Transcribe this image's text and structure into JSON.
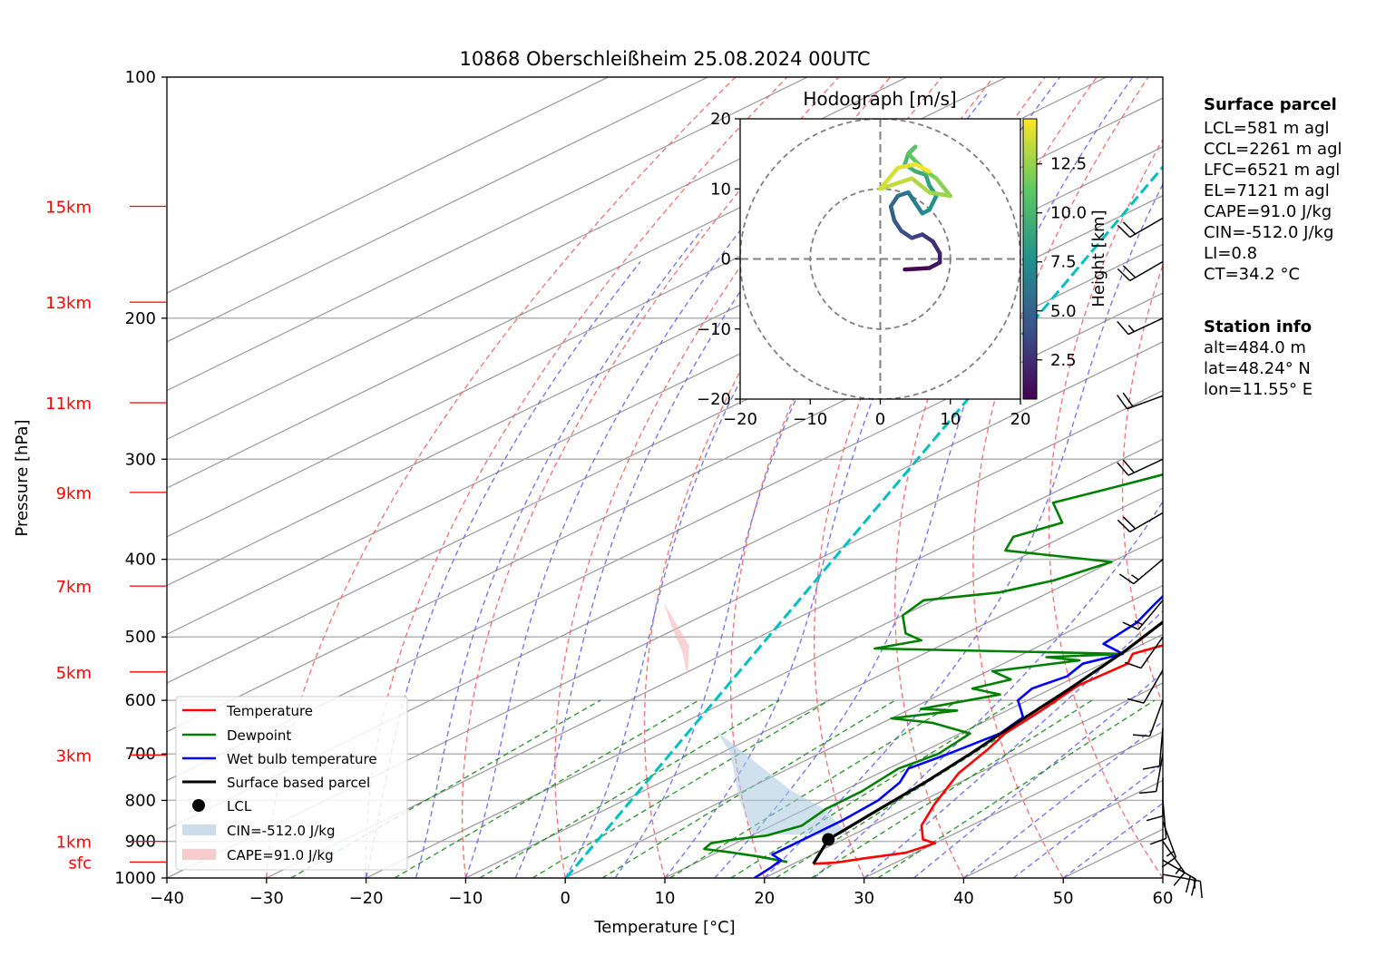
{
  "chart_data": {
    "type": "skew-t",
    "title": "10868 Oberschleißheim 25.08.2024 00UTC",
    "xlabel": "Temperature [°C]",
    "ylabel": "Pressure [hPa]",
    "xlim": [
      -40,
      60
    ],
    "ylim": [
      1000,
      100
    ],
    "x_ticks": [
      -40,
      -30,
      -20,
      -10,
      0,
      10,
      20,
      30,
      40,
      50,
      60
    ],
    "x_tick_labels": [
      "−40",
      "−30",
      "−20",
      "−10",
      "0",
      "10",
      "20",
      "30",
      "40",
      "50",
      "60"
    ],
    "y_ticks": [
      1000,
      900,
      800,
      700,
      600,
      500,
      400,
      300,
      200,
      100
    ],
    "y_tick_labels": [
      "1000",
      "900",
      "800",
      "700",
      "600",
      "500",
      "400",
      "300",
      "200",
      "100"
    ],
    "height_markers": [
      {
        "label": "sfc",
        "p": 955
      },
      {
        "label": "1km",
        "p": 900
      },
      {
        "label": "3km",
        "p": 702
      },
      {
        "label": "5km",
        "p": 553
      },
      {
        "label": "7km",
        "p": 432
      },
      {
        "label": "9km",
        "p": 330
      },
      {
        "label": "11km",
        "p": 255
      },
      {
        "label": "13km",
        "p": 191
      },
      {
        "label": "15km",
        "p": 145
      }
    ],
    "series": [
      {
        "name": "Temperature",
        "color": "#ff0000",
        "points": [
          [
            22,
            960
          ],
          [
            24,
            957
          ],
          [
            26,
            945
          ],
          [
            29,
            930
          ],
          [
            30,
            905
          ],
          [
            28,
            895
          ],
          [
            25,
            860
          ],
          [
            22,
            810
          ],
          [
            18,
            740
          ],
          [
            16,
            690
          ],
          [
            14.5,
            660
          ],
          [
            13.5,
            620
          ],
          [
            12,
            575
          ],
          [
            12.5,
            540
          ],
          [
            11,
            525
          ],
          [
            12.5,
            510
          ],
          [
            10,
            475
          ],
          [
            7,
            440
          ],
          [
            5.5,
            400
          ],
          [
            6,
            380
          ],
          [
            3,
            345
          ],
          [
            1,
            320
          ],
          [
            -2,
            300
          ],
          [
            -4,
            280
          ],
          [
            -6,
            262
          ],
          [
            -8,
            245
          ],
          [
            -9,
            230
          ],
          [
            -11,
            215
          ],
          [
            -14,
            200
          ],
          [
            -10.5,
            168
          ],
          [
            -8,
            160
          ],
          [
            -3,
            150
          ],
          [
            -2,
            143
          ],
          [
            0,
            130
          ],
          [
            0.5,
            125
          ],
          [
            0.3,
            120
          ],
          [
            1,
            115
          ],
          [
            1.5,
            114
          ]
        ]
      },
      {
        "name": "Dewpoint",
        "color": "#008000",
        "points": [
          [
            19,
            955
          ],
          [
            15,
            940
          ],
          [
            11,
            928
          ],
          [
            8,
            920
          ],
          [
            7.5,
            905
          ],
          [
            9,
            895
          ],
          [
            11.5,
            885
          ],
          [
            13,
            860
          ],
          [
            12,
            820
          ],
          [
            12,
            780
          ],
          [
            11,
            730
          ],
          [
            12,
            700
          ],
          [
            11,
            660
          ],
          [
            5,
            640
          ],
          [
            0,
            632
          ],
          [
            5,
            618
          ],
          [
            1,
            615
          ],
          [
            6,
            590
          ],
          [
            2,
            580
          ],
          [
            4,
            565
          ],
          [
            0.5,
            552
          ],
          [
            7,
            535
          ],
          [
            3,
            530
          ],
          [
            10,
            525
          ],
          [
            -16,
            517
          ],
          [
            -13,
            505
          ],
          [
            -16,
            495
          ],
          [
            -20,
            470
          ],
          [
            -21,
            450
          ],
          [
            -15,
            440
          ],
          [
            -12,
            425
          ],
          [
            -10,
            403
          ],
          [
            -23,
            390
          ],
          [
            -25,
            375
          ],
          [
            -23,
            360
          ],
          [
            -28,
            340
          ],
          [
            -25,
            325
          ],
          [
            -20,
            300
          ],
          [
            -21,
            280
          ],
          [
            -23,
            258
          ],
          [
            -24,
            235
          ],
          [
            -22,
            215
          ],
          [
            -19,
            200
          ],
          [
            -25,
            193
          ],
          [
            -27,
            180
          ],
          [
            -26,
            168
          ],
          [
            -28,
            155
          ],
          [
            -27,
            145
          ],
          [
            -25,
            140
          ],
          [
            -24.5,
            138
          ]
        ]
      },
      {
        "name": "Wet bulb temperature",
        "color": "#0000ff",
        "points": [
          [
            19,
            1000
          ],
          [
            18.5,
            970
          ],
          [
            18,
            950
          ],
          [
            16,
            935
          ],
          [
            16,
            905
          ],
          [
            16,
            880
          ],
          [
            16,
            845
          ],
          [
            15.5,
            800
          ],
          [
            14,
            760
          ],
          [
            12,
            730
          ],
          [
            13,
            700
          ],
          [
            14,
            660
          ],
          [
            13,
            630
          ],
          [
            9,
            600
          ],
          [
            8,
            580
          ],
          [
            9,
            560
          ],
          [
            8,
            540
          ],
          [
            10,
            525
          ],
          [
            6,
            510
          ],
          [
            5,
            480
          ],
          [
            3,
            455
          ],
          [
            1,
            430
          ],
          [
            0,
            400
          ],
          [
            -2,
            380
          ],
          [
            -4,
            355
          ],
          [
            -6,
            335
          ],
          [
            -7,
            310
          ],
          [
            -9,
            290
          ],
          [
            -12,
            265
          ],
          [
            -14,
            250
          ],
          [
            -17,
            225
          ],
          [
            -19,
            210
          ],
          [
            -19,
            200
          ],
          [
            -17,
            185
          ],
          [
            -14,
            170
          ],
          [
            -10,
            160
          ],
          [
            -5,
            150
          ],
          [
            -3,
            143
          ],
          [
            0,
            130
          ],
          [
            0,
            125
          ],
          [
            0.4,
            120
          ],
          [
            1,
            115
          ],
          [
            1.5,
            114
          ]
        ]
      },
      {
        "name": "Surface based parcel",
        "color": "#000000",
        "points": [
          [
            22,
            960
          ],
          [
            18.5,
            895
          ],
          [
            17.4,
            820
          ],
          [
            16.5,
            760
          ],
          [
            15.2,
            700
          ],
          [
            13.5,
            640
          ],
          [
            11.8,
            580
          ],
          [
            9.6,
            520
          ],
          [
            7,
            470
          ],
          [
            3.5,
            420
          ],
          [
            0,
            385
          ],
          [
            -3.5,
            355
          ],
          [
            -8,
            320
          ],
          [
            -12,
            290
          ],
          [
            -17,
            260
          ],
          [
            -21,
            238
          ],
          [
            -26,
            215
          ],
          [
            -31,
            195
          ],
          [
            -37,
            175
          ],
          [
            -43,
            158
          ],
          [
            -48.5,
            145
          ],
          [
            -51,
            140
          ]
        ]
      }
    ],
    "lcl": {
      "name": "LCL",
      "t": 18.5,
      "p": 895
    },
    "cin_label": "CIN=-512.0 J/kg",
    "cape_label": "CAPE=91.0 J/kg",
    "wind_barbs": [
      {
        "p": 990,
        "dir": 100,
        "speed": 15
      },
      {
        "p": 950,
        "dir": 120,
        "speed": 20
      },
      {
        "p": 900,
        "dir": 145,
        "speed": 15
      },
      {
        "p": 850,
        "dir": 160,
        "speed": 15
      },
      {
        "p": 800,
        "dir": 175,
        "speed": 10
      },
      {
        "p": 750,
        "dir": 180,
        "speed": 10
      },
      {
        "p": 700,
        "dir": 190,
        "speed": 10
      },
      {
        "p": 650,
        "dir": 185,
        "speed": 10
      },
      {
        "p": 600,
        "dir": 200,
        "speed": 10
      },
      {
        "p": 550,
        "dir": 210,
        "speed": 10
      },
      {
        "p": 500,
        "dir": 215,
        "speed": 10
      },
      {
        "p": 450,
        "dir": 220,
        "speed": 15
      },
      {
        "p": 400,
        "dir": 230,
        "speed": 15
      },
      {
        "p": 350,
        "dir": 240,
        "speed": 20
      },
      {
        "p": 300,
        "dir": 245,
        "speed": 20
      },
      {
        "p": 250,
        "dir": 250,
        "speed": 20
      },
      {
        "p": 200,
        "dir": 245,
        "speed": 15
      },
      {
        "p": 170,
        "dir": 240,
        "speed": 20
      },
      {
        "p": 150,
        "dir": 240,
        "speed": 20
      }
    ],
    "legend": {
      "placement": "lower-left",
      "entries": [
        "Temperature",
        "Dewpoint",
        "Wet bulb temperature",
        "Surface based parcel",
        "LCL",
        "CIN=-512.0 J/kg",
        "CAPE=91.0 J/kg"
      ]
    },
    "hodograph": {
      "title": "Hodograph [m/s]",
      "xlim": [
        -20,
        20
      ],
      "ylim": [
        -20,
        20
      ],
      "ticks": [
        -20,
        -10,
        0,
        10,
        20
      ],
      "tick_labels": [
        "−20",
        "−10",
        "0",
        "10",
        "20"
      ],
      "rings": [
        10,
        20
      ],
      "colorbar_label": "Height [km]",
      "colorbar_ticks": [
        2.5,
        5.0,
        7.5,
        10.0,
        12.5
      ],
      "colorbar_tick_labels": [
        "2.5",
        "5.0",
        "7.5",
        "10.0",
        "12.5"
      ],
      "colorbar_range": [
        0.5,
        14.8
      ],
      "points": [
        {
          "u": 3.5,
          "v": -1.5,
          "h": 0.5
        },
        {
          "u": 7,
          "v": -1.3,
          "h": 0.9
        },
        {
          "u": 8.5,
          "v": -0.5,
          "h": 1.5
        },
        {
          "u": 8.5,
          "v": 0.8,
          "h": 2.0
        },
        {
          "u": 7.5,
          "v": 2.5,
          "h": 2.5
        },
        {
          "u": 6,
          "v": 3.5,
          "h": 3.0
        },
        {
          "u": 4.5,
          "v": 3.0,
          "h": 3.5
        },
        {
          "u": 3.0,
          "v": 4.0,
          "h": 4.0
        },
        {
          "u": 2.0,
          "v": 5.5,
          "h": 4.5
        },
        {
          "u": 1.5,
          "v": 7.5,
          "h": 5.0
        },
        {
          "u": 2.5,
          "v": 9.0,
          "h": 5.5
        },
        {
          "u": 4.0,
          "v": 9.5,
          "h": 6.0
        },
        {
          "u": 5.0,
          "v": 8.0,
          "h": 6.5
        },
        {
          "u": 6.0,
          "v": 6.5,
          "h": 7.0
        },
        {
          "u": 7.0,
          "v": 7.0,
          "h": 7.5
        },
        {
          "u": 8.0,
          "v": 9.0,
          "h": 8.0
        },
        {
          "u": 7.0,
          "v": 10.5,
          "h": 8.5
        },
        {
          "u": 6.5,
          "v": 12.0,
          "h": 9.0
        },
        {
          "u": 5.0,
          "v": 12.5,
          "h": 9.5
        },
        {
          "u": 3.5,
          "v": 13.5,
          "h": 10.0
        },
        {
          "u": 4.0,
          "v": 15.0,
          "h": 10.3
        },
        {
          "u": 5.0,
          "v": 16.0,
          "h": 10.6
        },
        {
          "u": 4.0,
          "v": 15.0,
          "h": 11.0
        },
        {
          "u": 5.0,
          "v": 14.0,
          "h": 11.3
        },
        {
          "u": 6.5,
          "v": 12.5,
          "h": 11.6
        },
        {
          "u": 8.0,
          "v": 11.5,
          "h": 12.0
        },
        {
          "u": 10.0,
          "v": 9.0,
          "h": 12.4
        },
        {
          "u": 7.0,
          "v": 9.5,
          "h": 12.8
        },
        {
          "u": 4.5,
          "v": 11.5,
          "h": 13.2
        },
        {
          "u": 0.0,
          "v": 10.0,
          "h": 13.6
        },
        {
          "u": 2.5,
          "v": 13.0,
          "h": 14.0
        },
        {
          "u": 5.0,
          "v": 13.5,
          "h": 14.4
        },
        {
          "u": 7.0,
          "v": 12.5,
          "h": 14.8
        }
      ]
    }
  },
  "info_panel": {
    "surface_heading": "Surface parcel",
    "surface_lines": [
      "LCL=581 m agl",
      "CCL=2261 m agl",
      "LFC=6521 m agl",
      "EL=7121 m agl",
      "CAPE=91.0 J/kg",
      "CIN=-512.0 J/kg",
      "LI=0.8",
      "CT=34.2 °C"
    ],
    "station_heading": "Station info",
    "station_lines": [
      "alt=484.0 m",
      "lat=48.24° N",
      "lon=11.55° E"
    ]
  }
}
